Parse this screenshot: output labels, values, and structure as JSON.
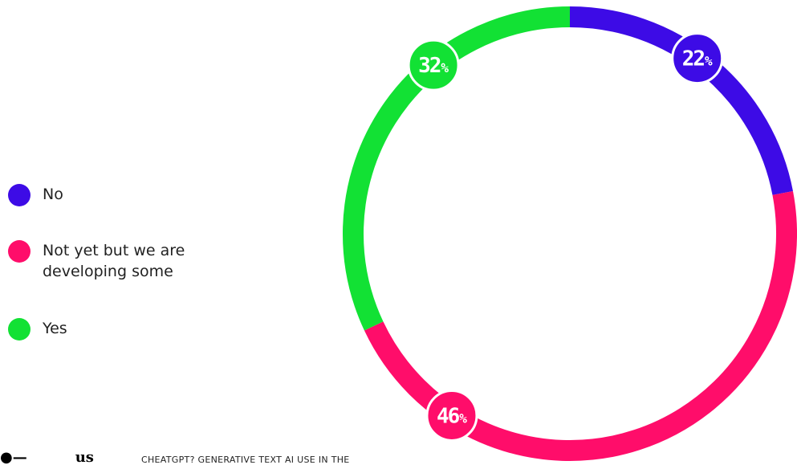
{
  "chart_data": {
    "type": "donut",
    "title": "",
    "series": [
      {
        "name": "No",
        "value": 22,
        "label": "22",
        "color": "#3D0BE6"
      },
      {
        "name": "Not yet but we are developing some",
        "value": 46,
        "label": "46",
        "color": "#FF0D6A"
      },
      {
        "name": "Yes",
        "value": 32,
        "label": "32",
        "color": "#12E134"
      }
    ],
    "percent_sign": "%",
    "legend_position": "left"
  },
  "legend": {
    "items": [
      {
        "label": "No",
        "color": "#3D0BE6"
      },
      {
        "label": "Not yet but we are developing some",
        "color": "#FF0D6A"
      },
      {
        "label": "Yes",
        "color": "#12E134"
      }
    ]
  },
  "footer": {
    "logo_text": "us",
    "caption": "CHEATGPT? GENERATIVE TEXT AI USE IN THE"
  }
}
